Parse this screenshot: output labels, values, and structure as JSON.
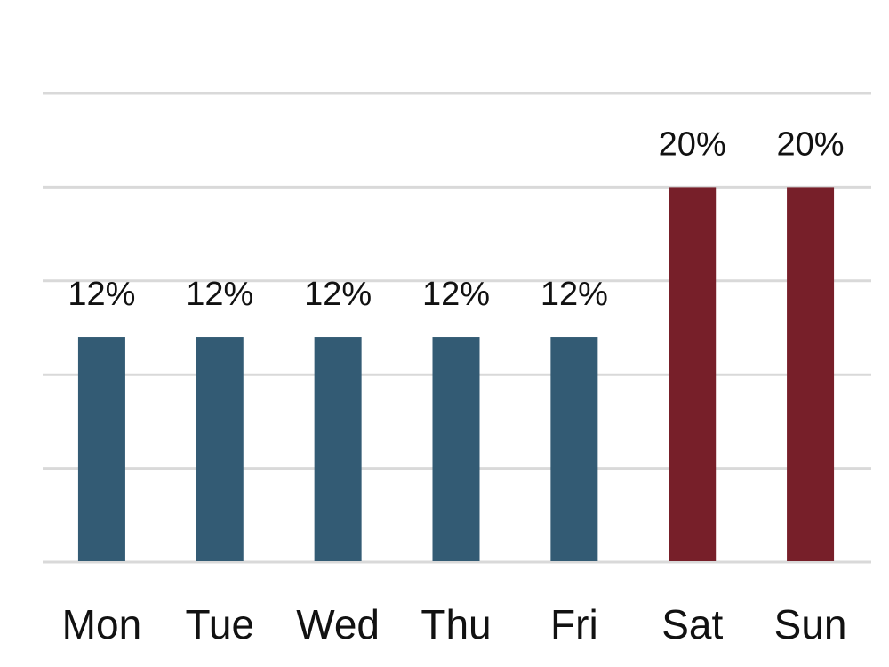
{
  "chart_data": {
    "type": "bar",
    "title": "",
    "xlabel": "",
    "ylabel": "",
    "ylim": [
      0,
      25
    ],
    "grid": true,
    "y_axis_labels_visible": false,
    "categories": [
      "Mon",
      "Tue",
      "Wed",
      "Thu",
      "Fri",
      "Sat",
      "Sun"
    ],
    "values": [
      12,
      12,
      12,
      12,
      12,
      20,
      20
    ],
    "data_labels": [
      "12%",
      "12%",
      "12%",
      "12%",
      "12%",
      "20%",
      "20%"
    ],
    "colors": {
      "weekday": "#335b74",
      "weekend": "#771f29",
      "grid": "#d9d9d9"
    },
    "bar_colors": [
      "#335b74",
      "#335b74",
      "#335b74",
      "#335b74",
      "#335b74",
      "#771f29",
      "#771f29"
    ]
  }
}
